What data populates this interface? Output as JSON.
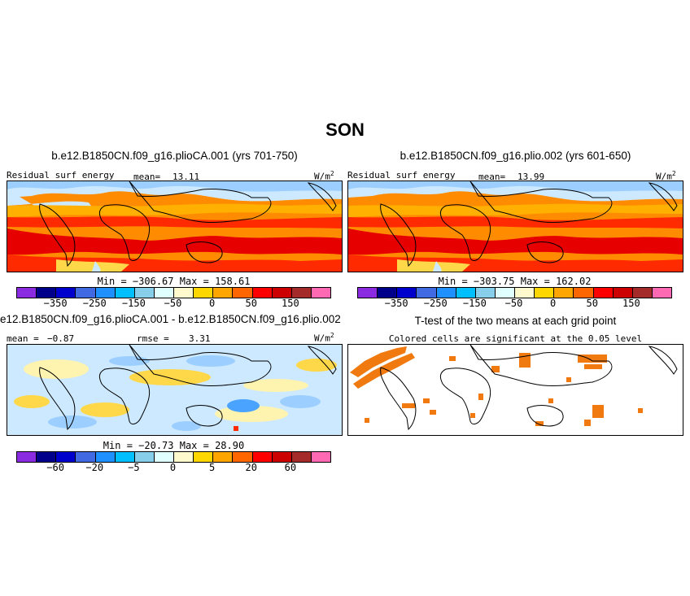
{
  "title": "SON",
  "panels": {
    "p1": {
      "title": "b.e12.B1850CN.f09_g16.plioCA.001 (yrs 701-750)",
      "left_label": "Residual surf energy",
      "mean_label": "mean=",
      "mean_value": "13.11",
      "units": "W/m",
      "units_sup": "2",
      "minmax": "Min = −306.67  Max = 158.61"
    },
    "p2": {
      "title": "b.e12.B1850CN.f09_g16.plio.002 (yrs 601-650)",
      "left_label": "Residual surf energy",
      "mean_label": "mean=",
      "mean_value": "13.99",
      "units": "W/m",
      "units_sup": "2",
      "minmax": "Min = −303.75  Max = 162.02"
    },
    "p3": {
      "title": "e12.B1850CN.f09_g16.plioCA.001 - b.e12.B1850CN.f09_g16.plio.002",
      "mean_label": "mean =",
      "mean_value": "−0.87",
      "rmse_label": "rmse =",
      "rmse_value": "3.31",
      "units": "W/m",
      "units_sup": "2",
      "minmax": "Min = −20.73  Max =  28.90"
    },
    "p4": {
      "title": "T-test of the two means at each grid point",
      "subtitle": "Colored cells are significant at the 0.05 level"
    }
  },
  "colorbars": {
    "abs": {
      "colors": [
        "#8a2be2",
        "#00008b",
        "#0000cd",
        "#4169e1",
        "#1e90ff",
        "#00bfff",
        "#87ceeb",
        "#e0ffff",
        "#fffacd",
        "#ffd700",
        "#ffa500",
        "#ff6600",
        "#ff0000",
        "#cc0000",
        "#a52a2a",
        "#ff69b4"
      ],
      "labels": [
        "−350",
        "−250",
        "−150",
        "−50",
        "0",
        "50",
        "150"
      ]
    },
    "diff": {
      "colors": [
        "#8a2be2",
        "#00008b",
        "#0000cd",
        "#4169e1",
        "#1e90ff",
        "#00bfff",
        "#87ceeb",
        "#e0ffff",
        "#fffacd",
        "#ffd700",
        "#ffa500",
        "#ff6600",
        "#ff0000",
        "#cc0000",
        "#a52a2a",
        "#ff69b4"
      ],
      "labels": [
        "−60",
        "−20",
        "−5",
        "0",
        "5",
        "20",
        "60"
      ]
    }
  },
  "colors": {
    "deep_red": "#e60000",
    "red": "#ff2a00",
    "orange": "#ff8c00",
    "light_orange": "#ffb000",
    "yellow": "#ffd84a",
    "pale_yellow": "#fff3b0",
    "light_blue": "#cde9ff",
    "mid_blue": "#9ccfff",
    "blue": "#4aa3ff",
    "sig_orange": "#f07a10"
  }
}
